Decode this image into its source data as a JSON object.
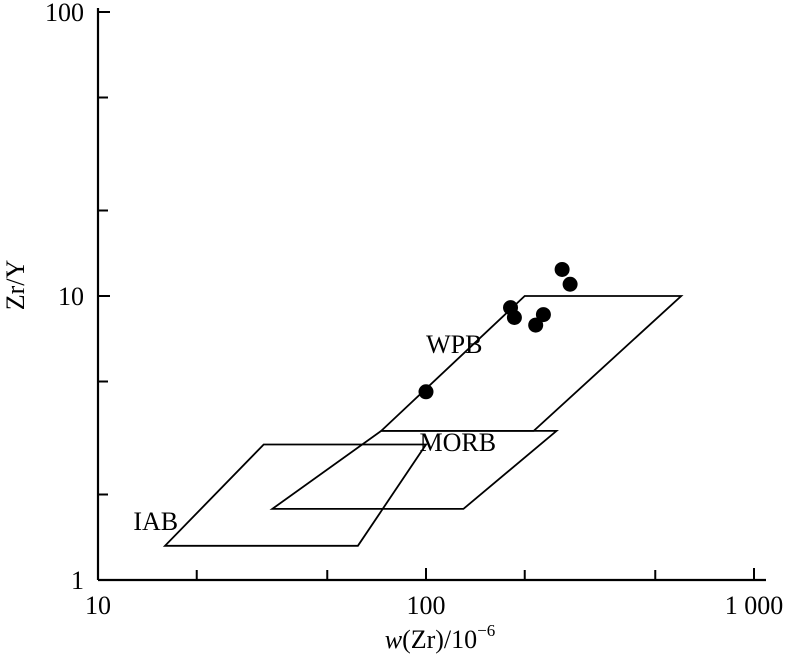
{
  "chart_data": {
    "type": "scatter",
    "title": "",
    "x_scale": "log",
    "y_scale": "log",
    "xlim": [
      10,
      1000
    ],
    "ylim": [
      1,
      100
    ],
    "x_ticks": [
      {
        "value": 10,
        "label": "10"
      },
      {
        "value": 100,
        "label": "100"
      },
      {
        "value": 1000,
        "label": "1 000"
      }
    ],
    "y_ticks": [
      {
        "value": 1,
        "label": "1"
      },
      {
        "value": 10,
        "label": "10"
      },
      {
        "value": 100,
        "label": "100"
      }
    ],
    "xlabel": {
      "italic": "w",
      "rest": "(Zr)/10",
      "sup": "−6"
    },
    "ylabel": "Zr/Y",
    "grid": false,
    "regions": [
      {
        "label": "WPB",
        "label_at": [
          122,
          6.3
        ],
        "vertices": [
          [
            73,
            3.35
          ],
          [
            200,
            10
          ],
          [
            600,
            10
          ],
          [
            213,
            3.35
          ]
        ]
      },
      {
        "label": "MORB",
        "label_at": [
          125,
          2.85
        ],
        "vertices": [
          [
            73,
            3.35
          ],
          [
            250,
            3.35
          ],
          [
            130,
            1.78
          ],
          [
            34,
            1.78
          ]
        ]
      },
      {
        "label": "IAB",
        "label_at": [
          15,
          1.5
        ],
        "vertices": [
          [
            32,
            3
          ],
          [
            100,
            3
          ],
          [
            62,
            1.32
          ],
          [
            16,
            1.32
          ]
        ]
      }
    ],
    "points": [
      {
        "x": 100,
        "y": 4.6
      },
      {
        "x": 181,
        "y": 9.1
      },
      {
        "x": 186,
        "y": 8.4
      },
      {
        "x": 216,
        "y": 7.9
      },
      {
        "x": 228,
        "y": 8.6
      },
      {
        "x": 260,
        "y": 12.4
      },
      {
        "x": 275,
        "y": 11.0
      }
    ]
  }
}
